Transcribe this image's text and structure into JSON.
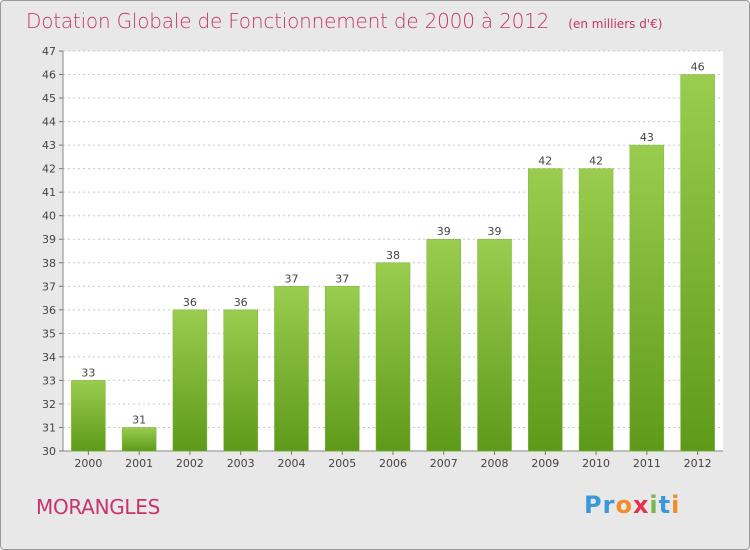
{
  "page": {
    "title": "Dotation Globale de Fonctionnement de 2000 à 2012",
    "unit_note": "(en milliers d'€)",
    "commune": "MORANGLES",
    "brand": {
      "text": "Proxiti",
      "letters": [
        {
          "char": "P",
          "color": "#3a9ad9"
        },
        {
          "char": "r",
          "color": "#3a9ad9"
        },
        {
          "char": "o",
          "color": "#f28c28"
        },
        {
          "char": "x",
          "color": "#e6334b"
        },
        {
          "char": "i",
          "color": "#7ab648"
        },
        {
          "char": "t",
          "color": "#3a9ad9"
        },
        {
          "char": "i",
          "color": "#f28c28"
        }
      ]
    }
  },
  "colors": {
    "title": "#c8336b",
    "bar_top": "#9acd4f",
    "bar_bottom": "#5e9a1a",
    "plot_bg": "#ffffff",
    "grid": "#c8c8c8",
    "frame_bg": "#e8e8e8"
  },
  "chart_data": {
    "type": "bar",
    "title": "Dotation Globale de Fonctionnement de 2000 à 2012",
    "subtitle": "(en milliers d'€)",
    "xlabel": "",
    "ylabel": "",
    "categories": [
      "2000",
      "2001",
      "2002",
      "2003",
      "2004",
      "2005",
      "2006",
      "2007",
      "2008",
      "2009",
      "2010",
      "2011",
      "2012"
    ],
    "values": [
      33,
      31,
      36,
      36,
      37,
      37,
      38,
      39,
      39,
      42,
      42,
      43,
      46
    ],
    "data_labels": [
      "33",
      "31",
      "36",
      "36",
      "37",
      "37",
      "38",
      "39",
      "39",
      "42",
      "42",
      "43",
      "46"
    ],
    "ylim": [
      30,
      47
    ],
    "yticks": [
      30,
      31,
      32,
      33,
      34,
      35,
      36,
      37,
      38,
      39,
      40,
      41,
      42,
      43,
      44,
      45,
      46,
      47
    ],
    "grid": true,
    "legend": "none"
  }
}
